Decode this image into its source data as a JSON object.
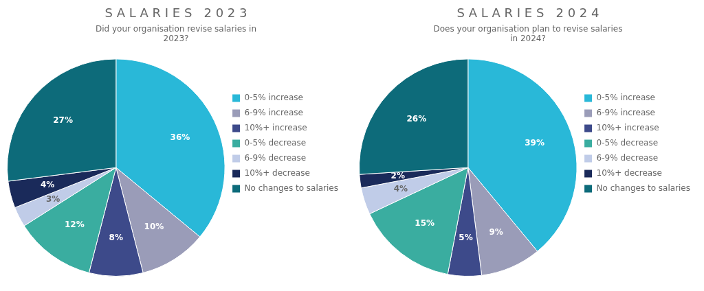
{
  "chart_data": [
    {
      "type": "pie",
      "title": "S A L A R I E S   2 0 2 3",
      "subtitle": "Did your organisation revise salaries in\n2023?",
      "categories": [
        "0-5% increase",
        "6-9% increase",
        "10%+ increase",
        "0-5% decrease",
        "6-9% decrease",
        "10%+ decrease",
        "No changes to salaries"
      ],
      "values": [
        36,
        10,
        8,
        12,
        3,
        4,
        27
      ],
      "value_labels": [
        "36%",
        "10%",
        "8%",
        "12%",
        "3%",
        "4%",
        "27%"
      ],
      "colors": [
        "#29b8d8",
        "#9a9cb8",
        "#3d4a8a",
        "#3aada0",
        "#c0cce8",
        "#1a2a5a",
        "#0d6b7a"
      ],
      "data_labels": true,
      "legend": "right"
    },
    {
      "type": "pie",
      "title": "S A L A R I E S   2 0 2 4",
      "subtitle": "Does your organisation plan to revise salaries\nin 2024?",
      "categories": [
        "0-5% increase",
        "6-9% increase",
        "10%+ increase",
        "0-5% decrease",
        "6-9% decrease",
        "10%+ decrease",
        "No changes to salaries"
      ],
      "values": [
        39,
        9,
        5,
        15,
        4,
        2,
        26
      ],
      "value_labels": [
        "39%",
        "9%",
        "5%",
        "15%",
        "4%",
        "2%",
        "26%"
      ],
      "colors": [
        "#29b8d8",
        "#9a9cb8",
        "#3d4a8a",
        "#3aada0",
        "#c0cce8",
        "#1a2a5a",
        "#0d6b7a"
      ],
      "data_labels": true,
      "legend": "right"
    }
  ]
}
